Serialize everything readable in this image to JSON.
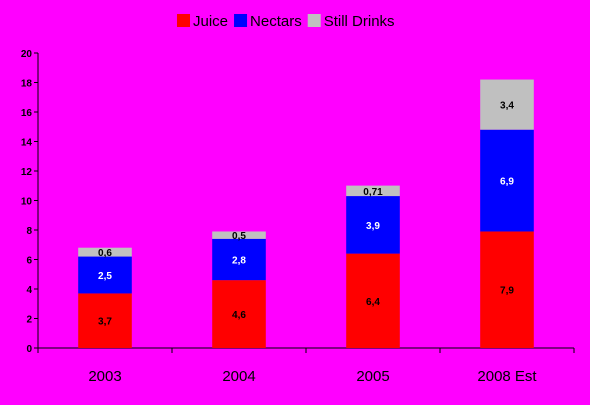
{
  "chart_data": {
    "type": "bar",
    "stacked": true,
    "categories": [
      "2003",
      "2004",
      "2005",
      "2008 Est"
    ],
    "series": [
      {
        "name": "Juice",
        "color": "#ff0000",
        "label_color": "#000000",
        "values": [
          3.7,
          4.6,
          6.4,
          7.9
        ],
        "labels": [
          "3,7",
          "4,6",
          "6,4",
          "7,9"
        ]
      },
      {
        "name": "Nectars",
        "color": "#0000ff",
        "label_color": "#ffffff",
        "values": [
          2.5,
          2.8,
          3.9,
          6.9
        ],
        "labels": [
          "2,5",
          "2,8",
          "3,9",
          "6,9"
        ]
      },
      {
        "name": "Still Drinks",
        "color": "#c0c0c0",
        "label_color": "#000000",
        "values": [
          0.6,
          0.5,
          0.71,
          3.4
        ],
        "labels": [
          "0,6",
          "0,5",
          "0,71",
          "3,4"
        ]
      }
    ],
    "yticks": [
      "0",
      "2",
      "4",
      "6",
      "8",
      "10",
      "12",
      "14",
      "16",
      "18",
      "20"
    ],
    "ylim": [
      0,
      20
    ],
    "legend_position": "top",
    "grid": false,
    "background_color": "#ff00ff"
  }
}
